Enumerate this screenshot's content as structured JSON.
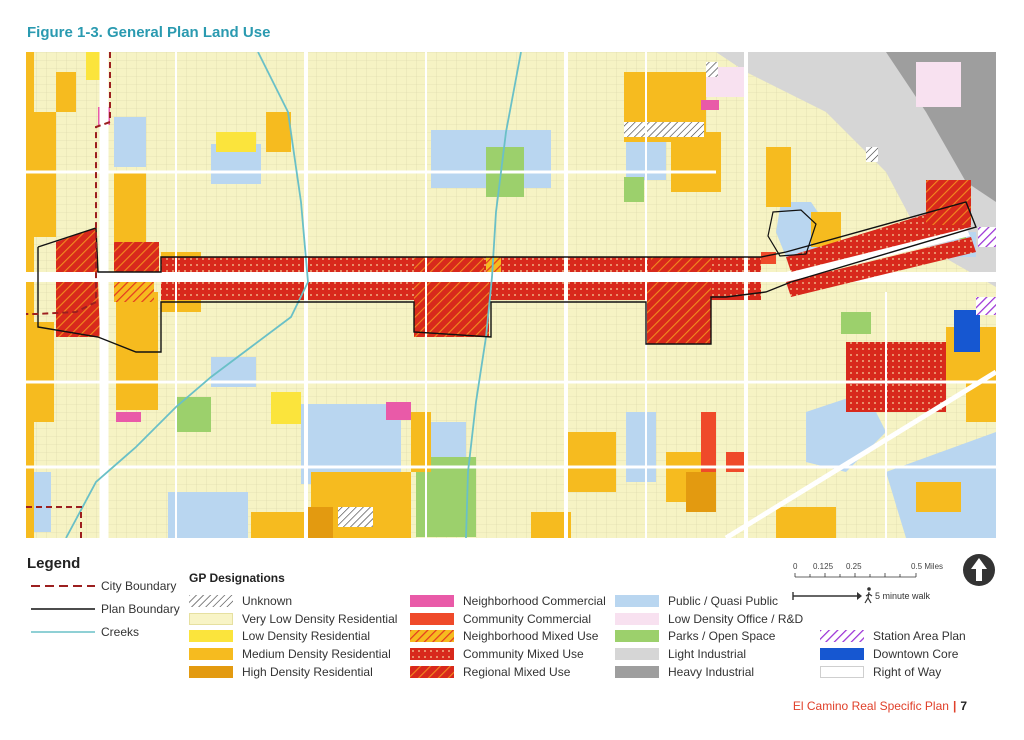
{
  "figure": {
    "title": "Figure 1-3. General Plan Land Use"
  },
  "map": {
    "colors": {
      "very_low": "#f6f3c4",
      "low": "#fbe43c",
      "medium": "#f6bb1f",
      "high": "#e39a10",
      "public": "#b9d6f0",
      "parks": "#9cd06c",
      "light_ind": "#d6d6d6",
      "heavy_ind": "#9e9e9e",
      "office": "#f8e1f0",
      "community_commercial": "#ef4a2a",
      "neighborhood_commercial": "#e95aa8",
      "mixed": "#d8291c",
      "downtown": "#1657d1",
      "creek": "#6ac0c7"
    }
  },
  "legend": {
    "title": "Legend",
    "boundaries": [
      {
        "label": "City Boundary",
        "color": "#9c1f1f",
        "style": "dashed"
      },
      {
        "label": "Plan Boundary",
        "color": "#111111",
        "style": "solid"
      },
      {
        "label": "Creeks",
        "color": "#6ac0c7",
        "style": "solid"
      }
    ],
    "gp_title": "GP Designations",
    "columns": [
      [
        {
          "label": "Unknown",
          "fill": "hatch-gray"
        },
        {
          "label": "Very Low Density Residential",
          "fill": "#f8f4c6"
        },
        {
          "label": "Low Density Residential",
          "fill": "#fbe43c"
        },
        {
          "label": "Medium Density Residential",
          "fill": "#f6bb1f"
        },
        {
          "label": "High Density Residential",
          "fill": "#e39a10"
        }
      ],
      [
        {
          "label": "Neighborhood Commercial",
          "fill": "#e95aa8"
        },
        {
          "label": "Community Commercial",
          "fill": "#ef4a2a"
        },
        {
          "label": "Neighborhood Mixed Use",
          "fill": "hatch-orange"
        },
        {
          "label": "Community Mixed Use",
          "fill": "dots-red"
        },
        {
          "label": "Regional Mixed Use",
          "fill": "hatch-red"
        }
      ],
      [
        {
          "label": "Public / Quasi Public",
          "fill": "#b9d6f0"
        },
        {
          "label": "Low Density Office / R&D",
          "fill": "#f8e1f0"
        },
        {
          "label": "Parks / Open Space",
          "fill": "#9cd06c"
        },
        {
          "label": "Light Industrial",
          "fill": "#d6d6d6"
        },
        {
          "label": "Heavy Industrial",
          "fill": "#9e9e9e"
        }
      ],
      [
        {
          "label": "Station Area Plan",
          "fill": "hatch-purple"
        },
        {
          "label": "Downtown Core",
          "fill": "#1657d1"
        },
        {
          "label": "Right of Way",
          "fill": "#ffffff"
        }
      ]
    ]
  },
  "scale": {
    "ticks": [
      "0",
      "0.125",
      "0.25",
      "0.5 Miles"
    ],
    "walk_label": "5 minute walk"
  },
  "footer": {
    "doc_title": "El Camino Real Specific Plan",
    "separator": "|",
    "page": "7"
  }
}
